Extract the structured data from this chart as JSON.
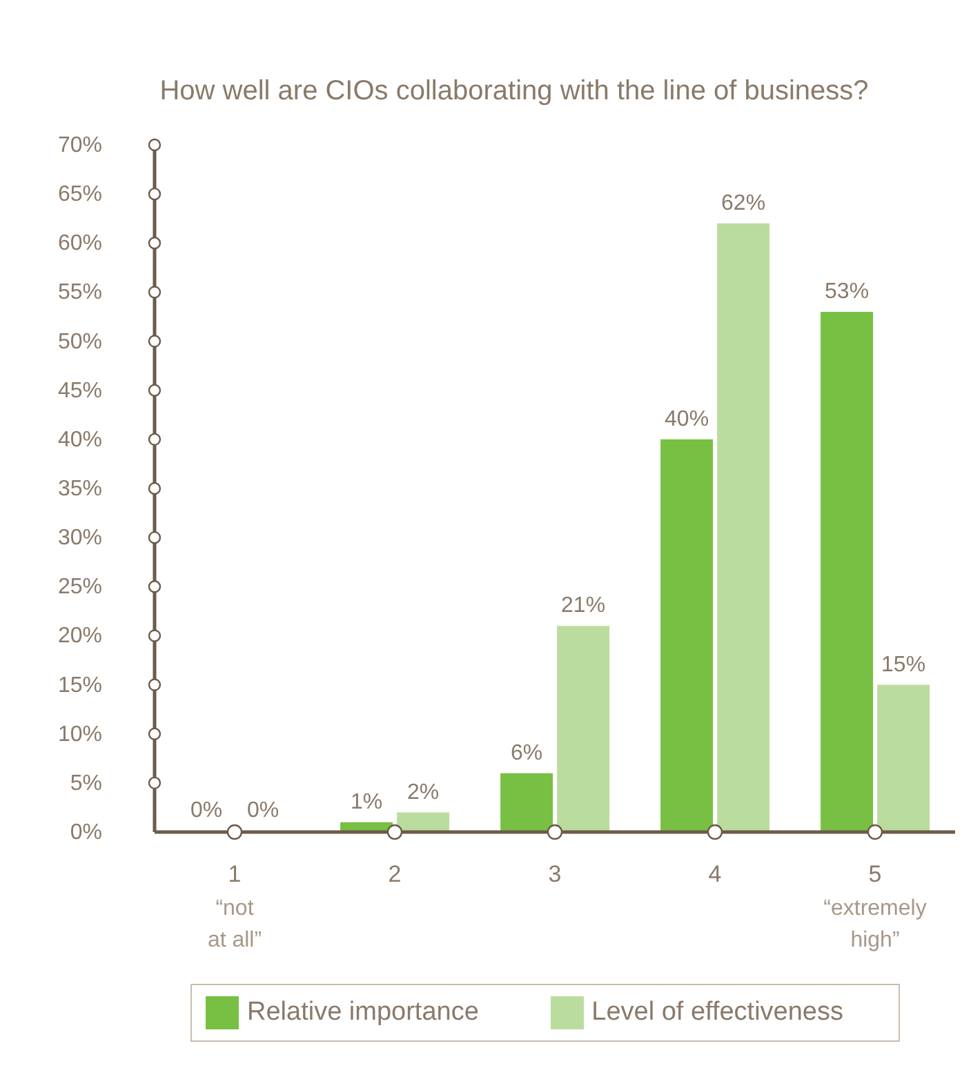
{
  "chart_data": {
    "type": "bar",
    "title": "How well are CIOs collaborating with the line of business?",
    "categories": [
      "1 “not at all”",
      "2",
      "3",
      "4",
      "5 “extremely high”"
    ],
    "series": [
      {
        "name": "Relative importance",
        "color": "#77c043",
        "values": [
          0,
          1,
          6,
          40,
          53
        ],
        "value_labels": [
          "0%",
          "1%",
          "6%",
          "40%",
          "53%"
        ]
      },
      {
        "name": "Level of effectiveness",
        "color": "#bbdc9f",
        "values": [
          0,
          2,
          21,
          62,
          15
        ],
        "value_labels": [
          "0%",
          "2%",
          "21%",
          "62%",
          "15%"
        ]
      }
    ],
    "ylim": [
      0,
      70
    ],
    "yticks": [
      {
        "value": 0,
        "label": "0%"
      },
      {
        "value": 5,
        "label": "5%"
      },
      {
        "value": 10,
        "label": "10%"
      },
      {
        "value": 15,
        "label": "15%"
      },
      {
        "value": 20,
        "label": "20%"
      },
      {
        "value": 25,
        "label": "25%"
      },
      {
        "value": 30,
        "label": "30%"
      },
      {
        "value": 35,
        "label": "35%"
      },
      {
        "value": 40,
        "label": "40%"
      },
      {
        "value": 45,
        "label": "45%"
      },
      {
        "value": 50,
        "label": "50%"
      },
      {
        "value": 55,
        "label": "55%"
      },
      {
        "value": 60,
        "label": "60%"
      },
      {
        "value": 65,
        "label": "65%"
      },
      {
        "value": 70,
        "label": "70%"
      }
    ],
    "legend": "bottom",
    "grid": false
  }
}
